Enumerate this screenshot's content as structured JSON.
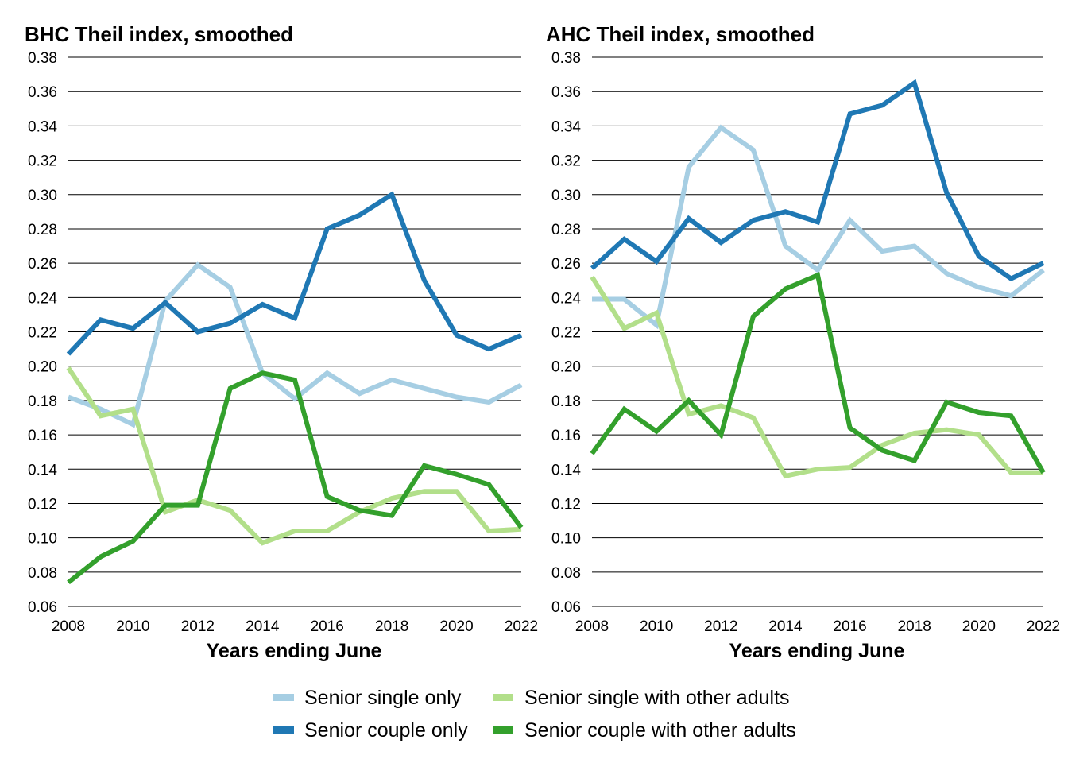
{
  "chart_data": [
    {
      "type": "line",
      "title": "BHC Theil index, smoothed",
      "xlabel": "Years ending June",
      "ylabel": "",
      "x": [
        2008,
        2009,
        2010,
        2011,
        2012,
        2013,
        2014,
        2015,
        2016,
        2017,
        2018,
        2019,
        2020,
        2021,
        2022
      ],
      "xticks": [
        "2008",
        "2010",
        "2012",
        "2014",
        "2016",
        "2018",
        "2020",
        "2022"
      ],
      "yticks": [
        "0.06",
        "0.08",
        "0.10",
        "0.12",
        "0.14",
        "0.16",
        "0.18",
        "0.20",
        "0.22",
        "0.24",
        "0.26",
        "0.28",
        "0.30",
        "0.32",
        "0.34",
        "0.36",
        "0.38"
      ],
      "xlim": [
        2008,
        2022
      ],
      "ylim": [
        0.06,
        0.38
      ],
      "grid": "horizontal",
      "series": [
        {
          "name": "Senior single only",
          "values": [
            0.182,
            0.175,
            0.166,
            0.238,
            0.259,
            0.246,
            0.196,
            0.181,
            0.196,
            0.184,
            0.192,
            0.187,
            0.182,
            0.179,
            0.189
          ]
        },
        {
          "name": "Senior couple only",
          "values": [
            0.207,
            0.227,
            0.222,
            0.237,
            0.22,
            0.225,
            0.236,
            0.228,
            0.28,
            0.288,
            0.3,
            0.25,
            0.218,
            0.21,
            0.218
          ]
        },
        {
          "name": "Senior single with other adults",
          "values": [
            0.199,
            0.171,
            0.175,
            0.115,
            0.122,
            0.116,
            0.097,
            0.104,
            0.104,
            0.115,
            0.123,
            0.127,
            0.127,
            0.104,
            0.105
          ]
        },
        {
          "name": "Senior couple with other adults",
          "values": [
            0.074,
            0.089,
            0.098,
            0.119,
            0.119,
            0.187,
            0.196,
            0.192,
            0.124,
            0.116,
            0.113,
            0.142,
            0.137,
            0.131,
            0.106
          ]
        }
      ]
    },
    {
      "type": "line",
      "title": "AHC Theil index, smoothed",
      "xlabel": "Years ending June",
      "ylabel": "",
      "x": [
        2008,
        2009,
        2010,
        2011,
        2012,
        2013,
        2014,
        2015,
        2016,
        2017,
        2018,
        2019,
        2020,
        2021,
        2022
      ],
      "xticks": [
        "2008",
        "2010",
        "2012",
        "2014",
        "2016",
        "2018",
        "2020",
        "2022"
      ],
      "yticks": [
        "0.06",
        "0.08",
        "0.10",
        "0.12",
        "0.14",
        "0.16",
        "0.18",
        "0.20",
        "0.22",
        "0.24",
        "0.26",
        "0.28",
        "0.30",
        "0.32",
        "0.34",
        "0.36",
        "0.38"
      ],
      "xlim": [
        2008,
        2022
      ],
      "ylim": [
        0.06,
        0.38
      ],
      "grid": "horizontal",
      "series": [
        {
          "name": "Senior single only",
          "values": [
            0.239,
            0.239,
            0.224,
            0.316,
            0.339,
            0.326,
            0.27,
            0.256,
            0.285,
            0.267,
            0.27,
            0.254,
            0.246,
            0.241,
            0.256
          ]
        },
        {
          "name": "Senior couple only",
          "values": [
            0.257,
            0.274,
            0.261,
            0.286,
            0.272,
            0.285,
            0.29,
            0.284,
            0.347,
            0.352,
            0.365,
            0.301,
            0.264,
            0.251,
            0.26
          ]
        },
        {
          "name": "Senior single with other adults",
          "values": [
            0.252,
            0.222,
            0.231,
            0.172,
            0.177,
            0.17,
            0.136,
            0.14,
            0.141,
            0.154,
            0.161,
            0.163,
            0.16,
            0.138,
            0.138
          ]
        },
        {
          "name": "Senior couple with other adults",
          "values": [
            0.149,
            0.175,
            0.162,
            0.18,
            0.16,
            0.229,
            0.245,
            0.253,
            0.164,
            0.151,
            0.145,
            0.179,
            0.173,
            0.171,
            0.138
          ]
        }
      ]
    }
  ],
  "legend": {
    "placement": "bottom-center",
    "items": [
      {
        "label": "Senior single only",
        "color": "#a6cee3"
      },
      {
        "label": "Senior single with other adults",
        "color": "#b2df8a"
      },
      {
        "label": "Senior couple only",
        "color": "#1f78b4"
      },
      {
        "label": "Senior couple with other adults",
        "color": "#33a02c"
      }
    ]
  },
  "series_colors": {
    "Senior single only": "#a6cee3",
    "Senior couple only": "#1f78b4",
    "Senior single with other adults": "#b2df8a",
    "Senior couple with other adults": "#33a02c"
  }
}
